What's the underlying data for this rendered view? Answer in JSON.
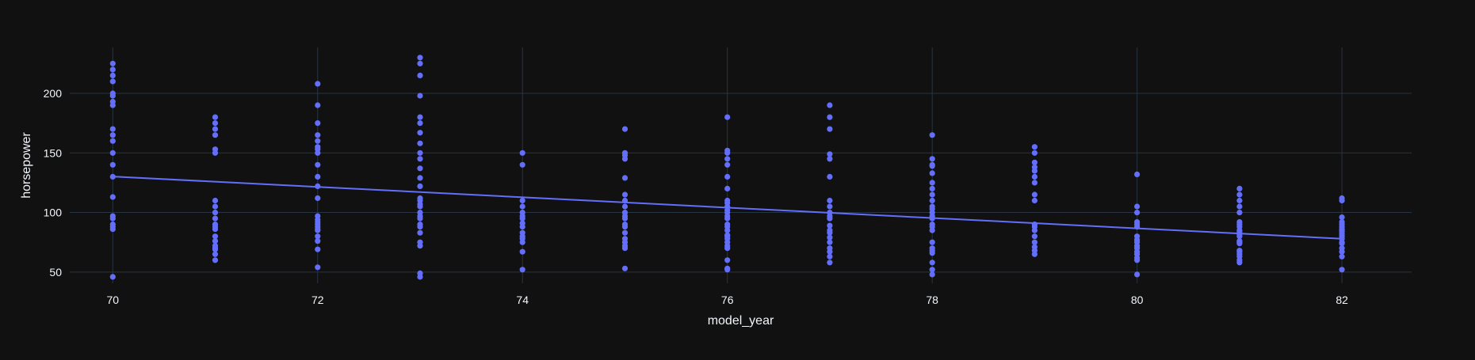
{
  "chart_data": {
    "type": "scatter",
    "xlabel": "model_year",
    "ylabel": "horsepower",
    "xlim": [
      69.58,
      82.68
    ],
    "ylim": [
      40.6,
      238.5
    ],
    "x_ticks": [
      70,
      72,
      74,
      76,
      78,
      80,
      82
    ],
    "y_ticks": [
      50,
      100,
      150,
      200
    ],
    "grid": true,
    "colors": {
      "background": "#111111",
      "grid": "#283442",
      "marker": "#636efa",
      "text": "#f2f5fa"
    },
    "series": [
      {
        "mode": "markers",
        "points": [
          {
            "x": 70,
            "y": 46
          },
          {
            "x": 70,
            "y": 86
          },
          {
            "x": 70,
            "y": 88
          },
          {
            "x": 70,
            "y": 90
          },
          {
            "x": 70,
            "y": 95
          },
          {
            "x": 70,
            "y": 97
          },
          {
            "x": 70,
            "y": 113
          },
          {
            "x": 70,
            "y": 130
          },
          {
            "x": 70,
            "y": 140
          },
          {
            "x": 70,
            "y": 150
          },
          {
            "x": 70,
            "y": 160
          },
          {
            "x": 70,
            "y": 165
          },
          {
            "x": 70,
            "y": 170
          },
          {
            "x": 70,
            "y": 190
          },
          {
            "x": 70,
            "y": 193
          },
          {
            "x": 70,
            "y": 198
          },
          {
            "x": 70,
            "y": 200
          },
          {
            "x": 70,
            "y": 210
          },
          {
            "x": 70,
            "y": 215
          },
          {
            "x": 70,
            "y": 220
          },
          {
            "x": 70,
            "y": 225
          },
          {
            "x": 71,
            "y": 60
          },
          {
            "x": 71,
            "y": 65
          },
          {
            "x": 71,
            "y": 69
          },
          {
            "x": 71,
            "y": 70
          },
          {
            "x": 71,
            "y": 72
          },
          {
            "x": 71,
            "y": 76
          },
          {
            "x": 71,
            "y": 80
          },
          {
            "x": 71,
            "y": 86
          },
          {
            "x": 71,
            "y": 88
          },
          {
            "x": 71,
            "y": 90
          },
          {
            "x": 71,
            "y": 95
          },
          {
            "x": 71,
            "y": 100
          },
          {
            "x": 71,
            "y": 105
          },
          {
            "x": 71,
            "y": 110
          },
          {
            "x": 71,
            "y": 150
          },
          {
            "x": 71,
            "y": 153
          },
          {
            "x": 71,
            "y": 165
          },
          {
            "x": 71,
            "y": 170
          },
          {
            "x": 71,
            "y": 175
          },
          {
            "x": 71,
            "y": 180
          },
          {
            "x": 72,
            "y": 54
          },
          {
            "x": 72,
            "y": 69
          },
          {
            "x": 72,
            "y": 76
          },
          {
            "x": 72,
            "y": 80
          },
          {
            "x": 72,
            "y": 85
          },
          {
            "x": 72,
            "y": 86
          },
          {
            "x": 72,
            "y": 88
          },
          {
            "x": 72,
            "y": 90
          },
          {
            "x": 72,
            "y": 92
          },
          {
            "x": 72,
            "y": 94
          },
          {
            "x": 72,
            "y": 97
          },
          {
            "x": 72,
            "y": 112
          },
          {
            "x": 72,
            "y": 122
          },
          {
            "x": 72,
            "y": 130
          },
          {
            "x": 72,
            "y": 140
          },
          {
            "x": 72,
            "y": 150
          },
          {
            "x": 72,
            "y": 153
          },
          {
            "x": 72,
            "y": 155
          },
          {
            "x": 72,
            "y": 160
          },
          {
            "x": 72,
            "y": 165
          },
          {
            "x": 72,
            "y": 175
          },
          {
            "x": 72,
            "y": 190
          },
          {
            "x": 72,
            "y": 208
          },
          {
            "x": 73,
            "y": 46
          },
          {
            "x": 73,
            "y": 49
          },
          {
            "x": 73,
            "y": 72
          },
          {
            "x": 73,
            "y": 75
          },
          {
            "x": 73,
            "y": 83
          },
          {
            "x": 73,
            "y": 88
          },
          {
            "x": 73,
            "y": 90
          },
          {
            "x": 73,
            "y": 95
          },
          {
            "x": 73,
            "y": 97
          },
          {
            "x": 73,
            "y": 100
          },
          {
            "x": 73,
            "y": 105
          },
          {
            "x": 73,
            "y": 107
          },
          {
            "x": 73,
            "y": 110
          },
          {
            "x": 73,
            "y": 112
          },
          {
            "x": 73,
            "y": 122
          },
          {
            "x": 73,
            "y": 129
          },
          {
            "x": 73,
            "y": 137
          },
          {
            "x": 73,
            "y": 145
          },
          {
            "x": 73,
            "y": 150
          },
          {
            "x": 73,
            "y": 158
          },
          {
            "x": 73,
            "y": 167
          },
          {
            "x": 73,
            "y": 175
          },
          {
            "x": 73,
            "y": 180
          },
          {
            "x": 73,
            "y": 198
          },
          {
            "x": 73,
            "y": 215
          },
          {
            "x": 73,
            "y": 225
          },
          {
            "x": 73,
            "y": 230
          },
          {
            "x": 74,
            "y": 52
          },
          {
            "x": 74,
            "y": 67
          },
          {
            "x": 74,
            "y": 75
          },
          {
            "x": 74,
            "y": 78
          },
          {
            "x": 74,
            "y": 80
          },
          {
            "x": 74,
            "y": 83
          },
          {
            "x": 74,
            "y": 88
          },
          {
            "x": 74,
            "y": 91
          },
          {
            "x": 74,
            "y": 95
          },
          {
            "x": 74,
            "y": 97
          },
          {
            "x": 74,
            "y": 100
          },
          {
            "x": 74,
            "y": 105
          },
          {
            "x": 74,
            "y": 110
          },
          {
            "x": 74,
            "y": 140
          },
          {
            "x": 74,
            "y": 150
          },
          {
            "x": 75,
            "y": 53
          },
          {
            "x": 75,
            "y": 70
          },
          {
            "x": 75,
            "y": 72
          },
          {
            "x": 75,
            "y": 75
          },
          {
            "x": 75,
            "y": 78
          },
          {
            "x": 75,
            "y": 83
          },
          {
            "x": 75,
            "y": 88
          },
          {
            "x": 75,
            "y": 90
          },
          {
            "x": 75,
            "y": 95
          },
          {
            "x": 75,
            "y": 97
          },
          {
            "x": 75,
            "y": 100
          },
          {
            "x": 75,
            "y": 105
          },
          {
            "x": 75,
            "y": 110
          },
          {
            "x": 75,
            "y": 115
          },
          {
            "x": 75,
            "y": 129
          },
          {
            "x": 75,
            "y": 145
          },
          {
            "x": 75,
            "y": 148
          },
          {
            "x": 75,
            "y": 150
          },
          {
            "x": 75,
            "y": 170
          },
          {
            "x": 76,
            "y": 52
          },
          {
            "x": 76,
            "y": 53
          },
          {
            "x": 76,
            "y": 60
          },
          {
            "x": 76,
            "y": 70
          },
          {
            "x": 76,
            "y": 72
          },
          {
            "x": 76,
            "y": 75
          },
          {
            "x": 76,
            "y": 78
          },
          {
            "x": 76,
            "y": 80
          },
          {
            "x": 76,
            "y": 81
          },
          {
            "x": 76,
            "y": 85
          },
          {
            "x": 76,
            "y": 88
          },
          {
            "x": 76,
            "y": 90
          },
          {
            "x": 76,
            "y": 95
          },
          {
            "x": 76,
            "y": 97
          },
          {
            "x": 76,
            "y": 100
          },
          {
            "x": 76,
            "y": 102
          },
          {
            "x": 76,
            "y": 105
          },
          {
            "x": 76,
            "y": 108
          },
          {
            "x": 76,
            "y": 110
          },
          {
            "x": 76,
            "y": 120
          },
          {
            "x": 76,
            "y": 130
          },
          {
            "x": 76,
            "y": 140
          },
          {
            "x": 76,
            "y": 145
          },
          {
            "x": 76,
            "y": 150
          },
          {
            "x": 76,
            "y": 152
          },
          {
            "x": 76,
            "y": 180
          },
          {
            "x": 77,
            "y": 58
          },
          {
            "x": 77,
            "y": 63
          },
          {
            "x": 77,
            "y": 67
          },
          {
            "x": 77,
            "y": 70
          },
          {
            "x": 77,
            "y": 75
          },
          {
            "x": 77,
            "y": 79
          },
          {
            "x": 77,
            "y": 83
          },
          {
            "x": 77,
            "y": 85
          },
          {
            "x": 77,
            "y": 89
          },
          {
            "x": 77,
            "y": 95
          },
          {
            "x": 77,
            "y": 97
          },
          {
            "x": 77,
            "y": 100
          },
          {
            "x": 77,
            "y": 105
          },
          {
            "x": 77,
            "y": 110
          },
          {
            "x": 77,
            "y": 130
          },
          {
            "x": 77,
            "y": 145
          },
          {
            "x": 77,
            "y": 149
          },
          {
            "x": 77,
            "y": 170
          },
          {
            "x": 77,
            "y": 180
          },
          {
            "x": 77,
            "y": 190
          },
          {
            "x": 78,
            "y": 48
          },
          {
            "x": 78,
            "y": 52
          },
          {
            "x": 78,
            "y": 58
          },
          {
            "x": 78,
            "y": 66
          },
          {
            "x": 78,
            "y": 68
          },
          {
            "x": 78,
            "y": 70
          },
          {
            "x": 78,
            "y": 75
          },
          {
            "x": 78,
            "y": 85
          },
          {
            "x": 78,
            "y": 88
          },
          {
            "x": 78,
            "y": 90
          },
          {
            "x": 78,
            "y": 95
          },
          {
            "x": 78,
            "y": 97
          },
          {
            "x": 78,
            "y": 100
          },
          {
            "x": 78,
            "y": 103
          },
          {
            "x": 78,
            "y": 105
          },
          {
            "x": 78,
            "y": 110
          },
          {
            "x": 78,
            "y": 115
          },
          {
            "x": 78,
            "y": 120
          },
          {
            "x": 78,
            "y": 125
          },
          {
            "x": 78,
            "y": 133
          },
          {
            "x": 78,
            "y": 139
          },
          {
            "x": 78,
            "y": 140
          },
          {
            "x": 78,
            "y": 145
          },
          {
            "x": 78,
            "y": 165
          },
          {
            "x": 79,
            "y": 65
          },
          {
            "x": 79,
            "y": 68
          },
          {
            "x": 79,
            "y": 71
          },
          {
            "x": 79,
            "y": 75
          },
          {
            "x": 79,
            "y": 80
          },
          {
            "x": 79,
            "y": 85
          },
          {
            "x": 79,
            "y": 88
          },
          {
            "x": 79,
            "y": 90
          },
          {
            "x": 79,
            "y": 110
          },
          {
            "x": 79,
            "y": 115
          },
          {
            "x": 79,
            "y": 125
          },
          {
            "x": 79,
            "y": 130
          },
          {
            "x": 79,
            "y": 135
          },
          {
            "x": 79,
            "y": 138
          },
          {
            "x": 79,
            "y": 142
          },
          {
            "x": 79,
            "y": 150
          },
          {
            "x": 79,
            "y": 155
          },
          {
            "x": 80,
            "y": 48
          },
          {
            "x": 80,
            "y": 60
          },
          {
            "x": 80,
            "y": 62
          },
          {
            "x": 80,
            "y": 65
          },
          {
            "x": 80,
            "y": 67
          },
          {
            "x": 80,
            "y": 70
          },
          {
            "x": 80,
            "y": 72
          },
          {
            "x": 80,
            "y": 75
          },
          {
            "x": 80,
            "y": 77
          },
          {
            "x": 80,
            "y": 80
          },
          {
            "x": 80,
            "y": 88
          },
          {
            "x": 80,
            "y": 90
          },
          {
            "x": 80,
            "y": 92
          },
          {
            "x": 80,
            "y": 100
          },
          {
            "x": 80,
            "y": 105
          },
          {
            "x": 80,
            "y": 132
          },
          {
            "x": 81,
            "y": 58
          },
          {
            "x": 81,
            "y": 60
          },
          {
            "x": 81,
            "y": 63
          },
          {
            "x": 81,
            "y": 65
          },
          {
            "x": 81,
            "y": 67
          },
          {
            "x": 81,
            "y": 68
          },
          {
            "x": 81,
            "y": 74
          },
          {
            "x": 81,
            "y": 75
          },
          {
            "x": 81,
            "y": 76
          },
          {
            "x": 81,
            "y": 80
          },
          {
            "x": 81,
            "y": 82
          },
          {
            "x": 81,
            "y": 84
          },
          {
            "x": 81,
            "y": 85
          },
          {
            "x": 81,
            "y": 88
          },
          {
            "x": 81,
            "y": 90
          },
          {
            "x": 81,
            "y": 92
          },
          {
            "x": 81,
            "y": 100
          },
          {
            "x": 81,
            "y": 105
          },
          {
            "x": 81,
            "y": 110
          },
          {
            "x": 81,
            "y": 115
          },
          {
            "x": 81,
            "y": 120
          },
          {
            "x": 82,
            "y": 52
          },
          {
            "x": 82,
            "y": 63
          },
          {
            "x": 82,
            "y": 67
          },
          {
            "x": 82,
            "y": 70
          },
          {
            "x": 82,
            "y": 74
          },
          {
            "x": 82,
            "y": 75
          },
          {
            "x": 82,
            "y": 78
          },
          {
            "x": 82,
            "y": 80
          },
          {
            "x": 82,
            "y": 82
          },
          {
            "x": 82,
            "y": 84
          },
          {
            "x": 82,
            "y": 85
          },
          {
            "x": 82,
            "y": 86
          },
          {
            "x": 82,
            "y": 88
          },
          {
            "x": 82,
            "y": 90
          },
          {
            "x": 82,
            "y": 92
          },
          {
            "x": 82,
            "y": 96
          },
          {
            "x": 82,
            "y": 110
          },
          {
            "x": 82,
            "y": 112
          }
        ]
      },
      {
        "mode": "lines",
        "points": [
          {
            "x": 70,
            "y": 130.2
          },
          {
            "x": 82,
            "y": 78.0
          }
        ]
      }
    ]
  }
}
